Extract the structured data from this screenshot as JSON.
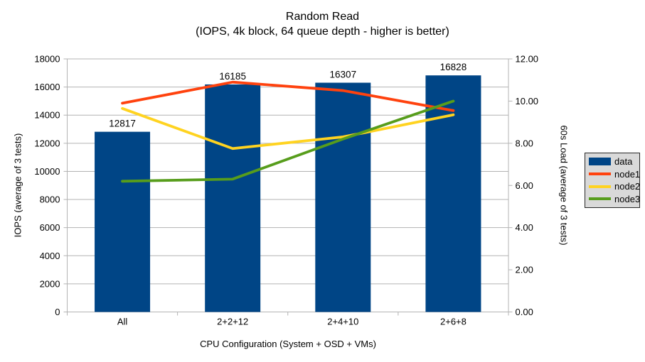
{
  "chart_data": {
    "type": "bar+line",
    "title": "Random Read",
    "subtitle": "(IOPS, 4k block, 64 queue depth - higher is better)",
    "categories": [
      "All",
      "2+2+12",
      "2+4+10",
      "2+6+8"
    ],
    "x_axis": {
      "label": "CPU Configuration (System + OSD + VMs)"
    },
    "left_axis": {
      "label": "IOPS (average of 3 tests)",
      "min": 0,
      "max": 18000,
      "step": 2000,
      "decimals": 0
    },
    "right_axis": {
      "label": "60s Load (average of 3 tests)",
      "min": 0,
      "max": 12,
      "step": 2,
      "decimals": 2
    },
    "bar_series": {
      "name": "data",
      "color": "#004586",
      "axis": "left",
      "values": [
        12817,
        16185,
        16307,
        16828
      ],
      "data_labels": [
        12817,
        16185,
        16307,
        16828
      ]
    },
    "line_series": [
      {
        "name": "node1",
        "color": "#FF420E",
        "axis": "right",
        "values": [
          9.9,
          10.9,
          10.5,
          9.55
        ]
      },
      {
        "name": "node2",
        "color": "#FFD320",
        "axis": "right",
        "values": [
          9.65,
          7.75,
          8.3,
          9.35
        ]
      },
      {
        "name": "node3",
        "color": "#579D1C",
        "axis": "right",
        "values": [
          6.2,
          6.3,
          8.2,
          10.0
        ]
      }
    ],
    "legend": {
      "position": "right",
      "background": "#D9D9D9",
      "entries": [
        {
          "label": "data",
          "swatch": "bar",
          "color": "#004586"
        },
        {
          "label": "node1",
          "swatch": "line",
          "color": "#FF420E"
        },
        {
          "label": "node2",
          "swatch": "line",
          "color": "#FFD320"
        },
        {
          "label": "node3",
          "swatch": "line",
          "color": "#579D1C"
        }
      ]
    },
    "grid": true,
    "colors": {
      "grid": "#B3B3B3",
      "axis": "#B3B3B3",
      "text": "#000000",
      "background": "#FFFFFF"
    }
  }
}
